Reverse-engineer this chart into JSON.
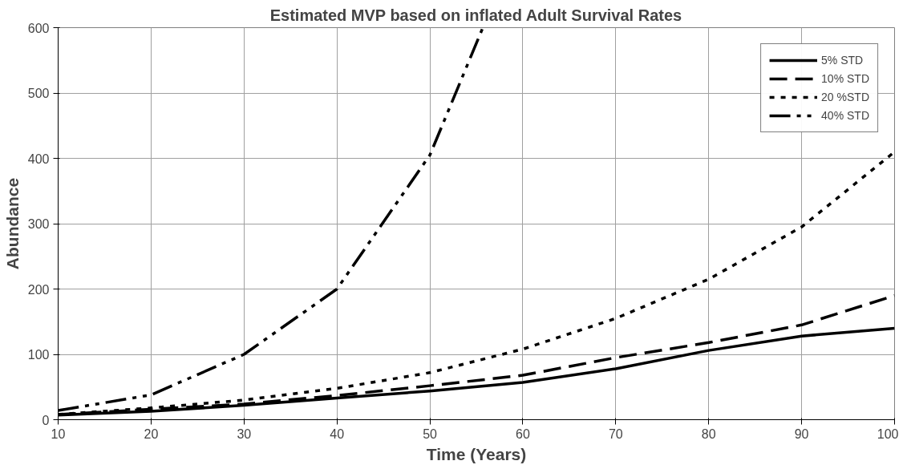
{
  "chart_data": {
    "type": "line",
    "title": "Estimated MVP based on inflated Adult Survival Rates",
    "xlabel": "Time (Years)",
    "ylabel": "Abundance",
    "x": [
      10,
      20,
      30,
      40,
      50,
      60,
      70,
      80,
      90,
      100
    ],
    "xlim": [
      10,
      100
    ],
    "xticks": [
      10,
      20,
      30,
      40,
      50,
      60,
      70,
      80,
      90,
      100
    ],
    "ylim": [
      0,
      600
    ],
    "yticks": [
      0,
      100,
      200,
      300,
      400,
      500,
      600
    ],
    "grid": true,
    "legend": "top right",
    "marker": "none",
    "series": [
      {
        "name": "5% STD",
        "color": "#000000",
        "line_style": "solid",
        "values": [
          7,
          13,
          22,
          33,
          44,
          57,
          78,
          106,
          128,
          140
        ]
      },
      {
        "name": "10% STD",
        "color": "#000000",
        "line_style": "dashed",
        "values": [
          8,
          16,
          24,
          37,
          52,
          68,
          95,
          118,
          145,
          190
        ]
      },
      {
        "name": "20 %STD",
        "color": "#000000",
        "line_style": "dotted",
        "values": [
          8,
          18,
          30,
          48,
          72,
          108,
          155,
          215,
          295,
          410
        ]
      },
      {
        "name": "40% STD",
        "color": "#000000",
        "line_style": "dashdotdot",
        "x": [
          10,
          20,
          30,
          40,
          50,
          55.7
        ],
        "values": [
          14,
          38,
          100,
          200,
          405,
          600
        ]
      }
    ]
  }
}
